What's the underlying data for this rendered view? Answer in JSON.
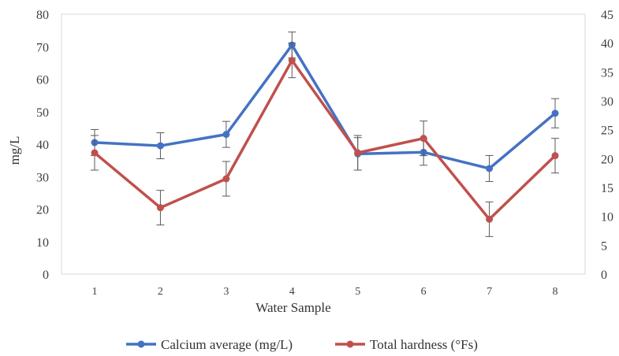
{
  "chart_data": {
    "type": "line",
    "x": [
      1,
      2,
      3,
      4,
      5,
      6,
      7,
      8
    ],
    "xlabel": "Water Sample",
    "ylabel_left": "mg/L",
    "ylabel_right": "",
    "ylim_left": [
      0,
      80
    ],
    "ylim_right": [
      0,
      45
    ],
    "yticks_left": [
      0,
      10,
      20,
      30,
      40,
      50,
      60,
      70,
      80
    ],
    "yticks_right": [
      0,
      5,
      10,
      15,
      20,
      25,
      30,
      35,
      40,
      45
    ],
    "grid": false,
    "legend_position": "bottom",
    "series": [
      {
        "name": "Calcium average (mg/L)",
        "axis": "left",
        "color": "#4472C4",
        "values": [
          40.5,
          39.5,
          43,
          70.5,
          37,
          37.5,
          32.5,
          49.5
        ],
        "error": [
          4,
          4,
          4,
          4,
          5,
          4,
          4,
          4.5
        ]
      },
      {
        "name": "Total hardness (°Fs)",
        "axis": "right",
        "color": "#C0504D",
        "values": [
          21,
          11.5,
          16.5,
          37,
          21,
          23.5,
          9.5,
          20.5
        ],
        "error": [
          3,
          3,
          3,
          3,
          3,
          3,
          3,
          3
        ]
      }
    ]
  }
}
